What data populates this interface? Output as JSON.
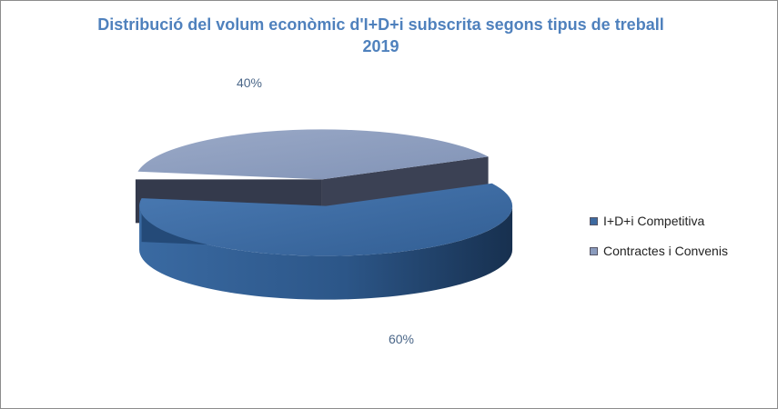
{
  "chart_data": {
    "type": "pie",
    "title": "Distribució del volum econòmic d'I+D+i subscrita segons tipus de treball",
    "subtitle": "2019",
    "legend_position": "right",
    "slices": [
      {
        "label": "I+D+i Competitiva",
        "value": 60,
        "value_label": "60%",
        "color": "#3d6aa0"
      },
      {
        "label": "Contractes i Convenis",
        "value": 40,
        "value_label": "40%",
        "color": "#8a9bbd"
      }
    ]
  }
}
